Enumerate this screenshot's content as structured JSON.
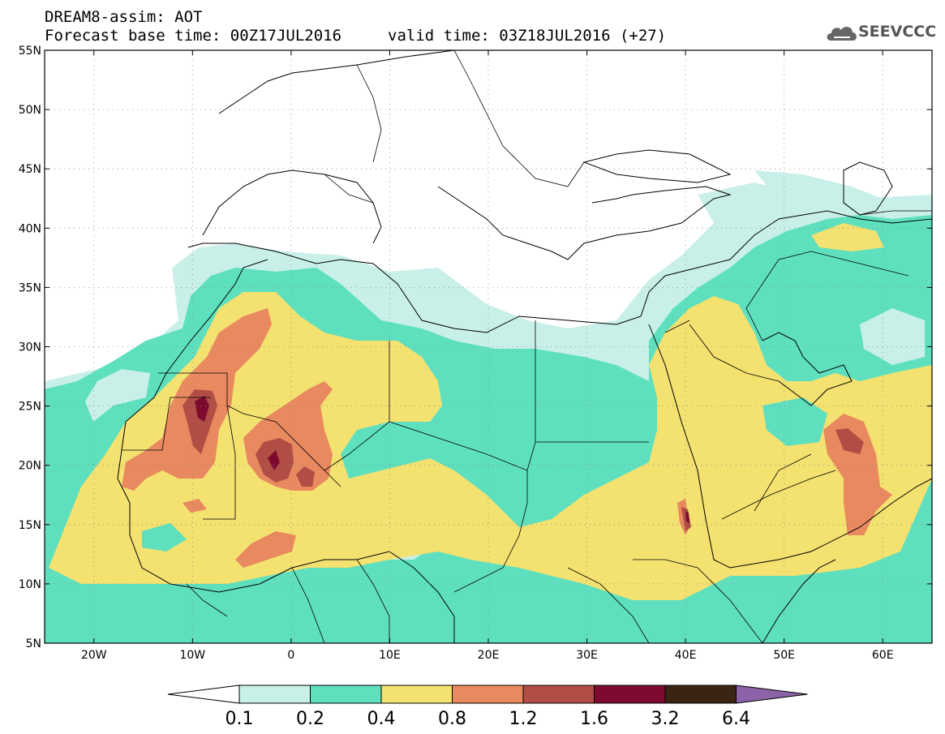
{
  "header": {
    "title_line1": "DREAM8-assim: AOT",
    "title_line2a": "Forecast base time: 00Z17JUL2016",
    "title_line2b": "valid time: 03Z18JUL2016 (+27)"
  },
  "logo": {
    "text": "SEEVCCC",
    "icon": "cloud-icon",
    "color": "#555555"
  },
  "map": {
    "lat_labels": [
      "55N",
      "50N",
      "45N",
      "40N",
      "35N",
      "30N",
      "25N",
      "20N",
      "15N",
      "10N",
      "5N"
    ],
    "lon_labels": [
      "20W",
      "10W",
      "0",
      "10E",
      "20E",
      "30E",
      "40E",
      "50E",
      "60E"
    ],
    "lat_values": [
      55,
      50,
      45,
      40,
      35,
      30,
      25,
      20,
      15,
      10,
      5
    ],
    "lon_values": [
      -20,
      -10,
      0,
      10,
      20,
      30,
      40,
      50,
      60
    ],
    "lon_range": [
      -25,
      65
    ],
    "lat_range": [
      5,
      55
    ],
    "grid": "dotted",
    "background": "#ffffff"
  },
  "legend": {
    "labels": [
      "0.1",
      "0.2",
      "0.4",
      "0.8",
      "1.2",
      "1.6",
      "3.2",
      "6.4"
    ],
    "colors": [
      "#c8f0e8",
      "#5ee0bf",
      "#f3e170",
      "#e9895f",
      "#b04e45",
      "#7e0b2f",
      "#3a2413",
      "#8c63a8"
    ],
    "below_color": "#ffffff"
  }
}
